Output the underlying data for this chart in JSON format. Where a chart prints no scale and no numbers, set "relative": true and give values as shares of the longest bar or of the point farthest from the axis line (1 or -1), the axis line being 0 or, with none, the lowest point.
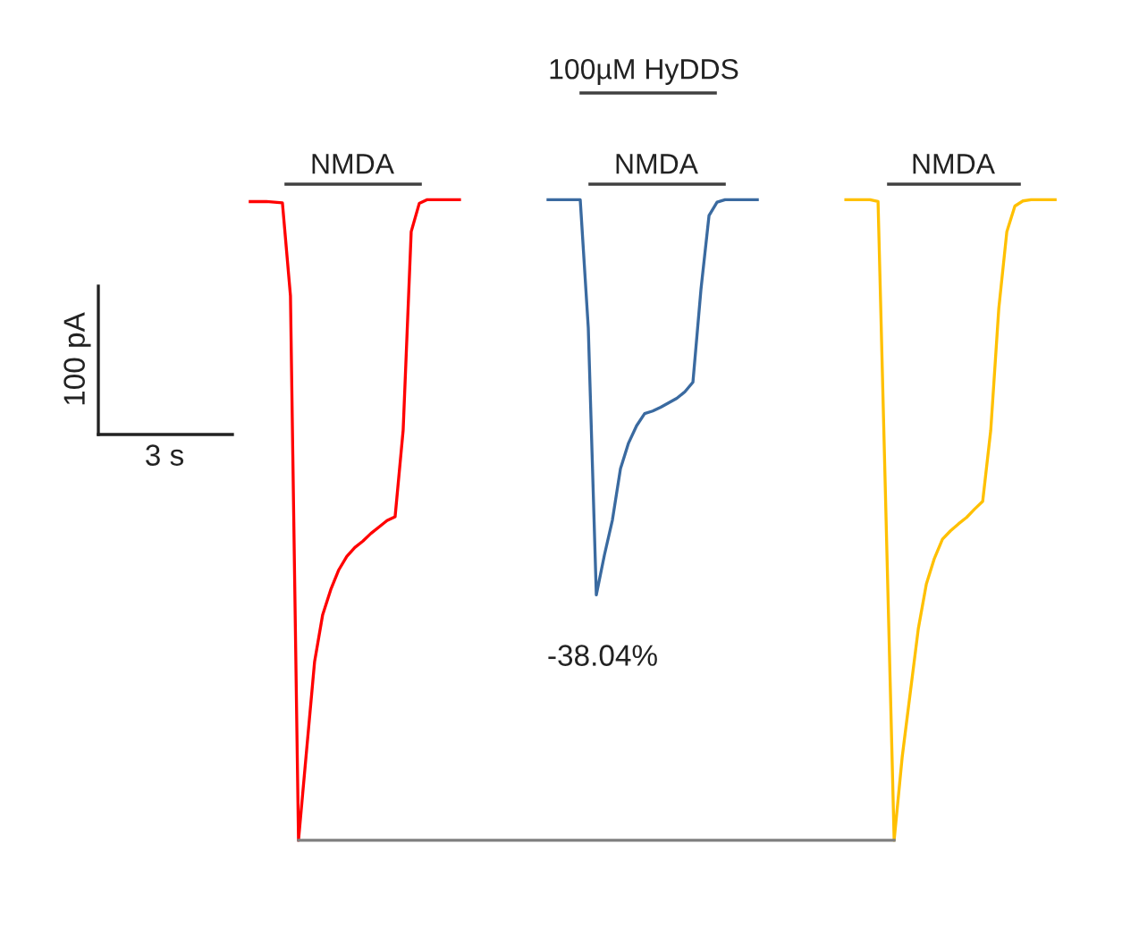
{
  "chart_data": {
    "type": "line",
    "relative": true,
    "categories": [
      null,
      null,
      null,
      null,
      null,
      null,
      null,
      null,
      null,
      null,
      null,
      null,
      null,
      null,
      null,
      null,
      null,
      null,
      null,
      null,
      null,
      null,
      null,
      null,
      null,
      null,
      null,
      null,
      null,
      null,
      null,
      null,
      null,
      null,
      null,
      null,
      null,
      null,
      null,
      null,
      null,
      null,
      null,
      null,
      null,
      null,
      null,
      null,
      null,
      null,
      null,
      null,
      null,
      null,
      null,
      null,
      null,
      null,
      null,
      null,
      null,
      null,
      null,
      null,
      null,
      null,
      null,
      null,
      null,
      null,
      null,
      null,
      null,
      null,
      null,
      null,
      null,
      null,
      null,
      null,
      null,
      null,
      null,
      null,
      null,
      null,
      null,
      null,
      null,
      null,
      null,
      null,
      null,
      null,
      null,
      null,
      null,
      null,
      null,
      null,
      null
    ],
    "series": [
      {
        "color": "#ff0000",
        "values": [
          0.997,
          0.997,
          0.997,
          0.996,
          0.995,
          0.85,
          0,
          0.14,
          0.279,
          0.352,
          0.391,
          0.422,
          0.443,
          0.457,
          0.467,
          0.479,
          0.489,
          0.499,
          0.505,
          0.64,
          0.95,
          0.994,
          1,
          1,
          1,
          1,
          1,
          null,
          null,
          null,
          null,
          null,
          null,
          null,
          null,
          null,
          null,
          null,
          null,
          null,
          null,
          null,
          null,
          null,
          null,
          null,
          null,
          null,
          null,
          null,
          null,
          null,
          null,
          null,
          null,
          null,
          null,
          null,
          null,
          null,
          null,
          null,
          null,
          null,
          null,
          null,
          null,
          null,
          null,
          null,
          null,
          null,
          null,
          null,
          null,
          null,
          null,
          null,
          null,
          null,
          null,
          null,
          null,
          null,
          null,
          null,
          null,
          null,
          null,
          null,
          null,
          null,
          null,
          null,
          null,
          null,
          null,
          null,
          null,
          null,
          null
        ]
      },
      {
        "color": "#3a6aa0",
        "values": [
          null,
          null,
          null,
          null,
          null,
          null,
          null,
          null,
          null,
          null,
          null,
          null,
          null,
          null,
          null,
          null,
          null,
          null,
          null,
          null,
          null,
          null,
          null,
          null,
          null,
          null,
          null,
          null,
          null,
          null,
          null,
          null,
          null,
          null,
          null,
          null,
          null,
          1,
          1,
          1,
          1,
          1,
          0.8,
          0.383,
          0.445,
          0.5,
          0.58,
          0.62,
          0.647,
          0.666,
          0.67,
          0.676,
          0.683,
          0.69,
          0.7,
          0.715,
          0.86,
          0.975,
          0.996,
          1,
          1,
          1,
          1,
          1,
          null,
          null,
          null,
          null,
          null,
          null,
          null,
          null,
          null,
          null,
          null,
          null,
          null,
          null,
          null,
          null,
          null,
          null,
          null,
          null,
          null,
          null,
          null,
          null,
          null,
          null,
          null,
          null,
          null,
          null,
          null,
          null,
          null,
          null,
          null,
          null,
          null
        ]
      },
      {
        "color": "#ffc000",
        "values": [
          null,
          null,
          null,
          null,
          null,
          null,
          null,
          null,
          null,
          null,
          null,
          null,
          null,
          null,
          null,
          null,
          null,
          null,
          null,
          null,
          null,
          null,
          null,
          null,
          null,
          null,
          null,
          null,
          null,
          null,
          null,
          null,
          null,
          null,
          null,
          null,
          null,
          null,
          null,
          null,
          null,
          null,
          null,
          null,
          null,
          null,
          null,
          null,
          null,
          null,
          null,
          null,
          null,
          null,
          null,
          null,
          null,
          null,
          null,
          null,
          null,
          null,
          null,
          null,
          null,
          null,
          null,
          null,
          null,
          null,
          null,
          null,
          null,
          null,
          1,
          1,
          1,
          1,
          0.997,
          0.5,
          0,
          0.13,
          0.23,
          0.33,
          0.4,
          0.44,
          0.47,
          0.483,
          0.494,
          0.504,
          0.517,
          0.529,
          0.64,
          0.83,
          0.95,
          0.99,
          0.998,
          1,
          1,
          1,
          1
        ]
      },
      {
        "color": "#7f7f7f",
        "values": [
          null,
          null,
          null,
          null,
          null,
          null,
          0,
          0,
          0,
          0,
          0,
          0,
          0,
          0,
          0,
          0,
          0,
          0,
          0,
          0,
          0,
          0,
          0,
          0,
          0,
          0,
          0,
          0,
          0,
          0,
          0,
          0,
          0,
          0,
          0,
          0,
          0,
          0,
          0,
          0,
          0,
          0,
          0,
          0,
          0,
          0,
          0,
          0,
          0,
          0,
          0,
          0,
          0,
          0,
          0,
          0,
          0,
          0,
          0,
          0,
          0,
          0,
          0,
          0,
          0,
          0,
          0,
          0,
          0,
          0,
          0,
          0,
          0,
          0,
          0,
          0,
          0,
          0,
          0,
          0,
          0,
          null,
          null,
          null,
          null,
          null,
          null,
          null,
          null,
          null,
          null,
          null,
          null,
          null,
          null,
          null,
          null,
          null,
          null,
          null,
          null
        ]
      }
    ],
    "annotations": [
      "100 pA",
      "3 s",
      "-38.04%",
      "NMDA",
      "NMDA",
      "NMDA",
      "100µM HyDDS"
    ]
  }
}
